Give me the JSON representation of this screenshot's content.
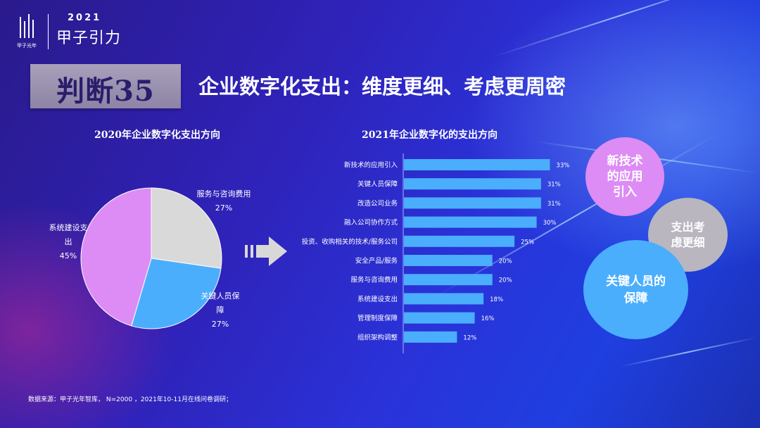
{
  "brand": {
    "year": "2021",
    "name": "甲子引力",
    "caption": "甲子光年"
  },
  "badge": {
    "text": "判断35"
  },
  "page_title": "企业数字化支出：维度更细、考虑更周密",
  "colors": {
    "pie_grey": "#d9d9d9",
    "pie_blue": "#4aaefd",
    "pie_purple": "#dd8cf5",
    "bar": "#4aaefd",
    "bubble_pink": "#dd8cf5",
    "bubble_grey": "#b9b6c0",
    "bubble_blue": "#4aaefd"
  },
  "chart_data": [
    {
      "type": "pie",
      "title": "2020年企业数字化支出方向",
      "slices": [
        {
          "label": "服务与咨询费用",
          "value": 27,
          "display": "27%"
        },
        {
          "label": "关键人员保障",
          "value": 27,
          "display": "27%"
        },
        {
          "label": "系统建设支出",
          "value": 45,
          "display": "45%"
        }
      ]
    },
    {
      "type": "bar",
      "orientation": "horizontal",
      "title": "2021年企业数字化的支出方向",
      "categories": [
        "新技术的应用引入",
        "关键人员保障",
        "改造公司业务",
        "融入公司协作方式",
        "投资、收购相关的技术/服务公司",
        "安全产品/服务",
        "服务与咨询费用",
        "系统建设支出",
        "管理制度保障",
        "组织架构调整"
      ],
      "values": [
        33,
        31,
        31,
        30,
        25,
        20,
        20,
        18,
        16,
        12
      ],
      "labels": [
        "33%",
        "31%",
        "31%",
        "30%",
        "25%",
        "20%",
        "20%",
        "18%",
        "16%",
        "12%"
      ],
      "xlim": [
        0,
        35
      ]
    }
  ],
  "pie_labels": {
    "service_1": "服务与咨询费用",
    "service_2": "27%",
    "personnel_1": "关键人员保",
    "personnel_2": "障",
    "personnel_3": "27%",
    "system_1": "系统建设支",
    "system_2": "出",
    "system_3": "45%"
  },
  "bubbles": {
    "pink": [
      "新技术",
      "的应用",
      "引入"
    ],
    "grey": [
      "支出考",
      "虑更细"
    ],
    "blue": [
      "关键人员的",
      "保障"
    ]
  },
  "source": "数据来源：甲子光年智库， N=2000 ，2021年10-11月在线问卷调研；"
}
